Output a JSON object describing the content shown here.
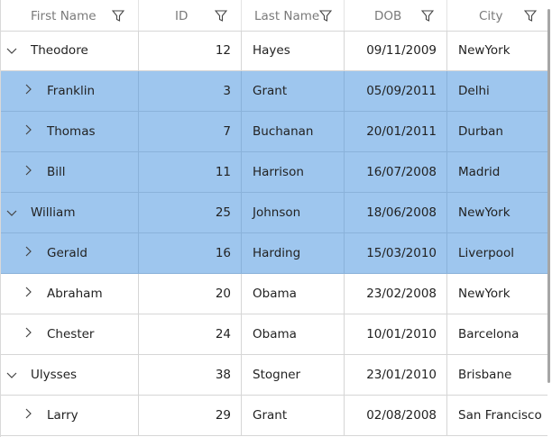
{
  "columns": [
    {
      "label": "First Name",
      "filter_icon": "filter-icon"
    },
    {
      "label": "ID",
      "filter_icon": "filter-icon"
    },
    {
      "label": "Last Name",
      "filter_icon": "filter-icon"
    },
    {
      "label": "DOB",
      "filter_icon": "filter-icon"
    },
    {
      "label": "City",
      "filter_icon": "filter-icon"
    }
  ],
  "rows": [
    {
      "level": 0,
      "expanded": true,
      "selected": false,
      "first_name": "Theodore",
      "id": "12",
      "last_name": "Hayes",
      "dob": "09/11/2009",
      "city": "NewYork"
    },
    {
      "level": 1,
      "expanded": false,
      "selected": true,
      "first_name": "Franklin",
      "id": "3",
      "last_name": "Grant",
      "dob": "05/09/2011",
      "city": "Delhi"
    },
    {
      "level": 1,
      "expanded": false,
      "selected": true,
      "first_name": "Thomas",
      "id": "7",
      "last_name": "Buchanan",
      "dob": "20/01/2011",
      "city": "Durban"
    },
    {
      "level": 1,
      "expanded": false,
      "selected": true,
      "first_name": "Bill",
      "id": "11",
      "last_name": "Harrison",
      "dob": "16/07/2008",
      "city": "Madrid"
    },
    {
      "level": 0,
      "expanded": true,
      "selected": true,
      "first_name": "William",
      "id": "25",
      "last_name": "Johnson",
      "dob": "18/06/2008",
      "city": "NewYork"
    },
    {
      "level": 1,
      "expanded": false,
      "selected": true,
      "first_name": "Gerald",
      "id": "16",
      "last_name": "Harding",
      "dob": "15/03/2010",
      "city": "Liverpool"
    },
    {
      "level": 1,
      "expanded": false,
      "selected": false,
      "first_name": "Abraham",
      "id": "20",
      "last_name": "Obama",
      "dob": "23/02/2008",
      "city": "NewYork"
    },
    {
      "level": 1,
      "expanded": false,
      "selected": false,
      "first_name": "Chester",
      "id": "24",
      "last_name": "Obama",
      "dob": "10/01/2010",
      "city": "Barcelona"
    },
    {
      "level": 0,
      "expanded": true,
      "selected": false,
      "first_name": "Ulysses",
      "id": "38",
      "last_name": "Stogner",
      "dob": "23/01/2010",
      "city": "Brisbane"
    },
    {
      "level": 1,
      "expanded": false,
      "selected": false,
      "first_name": "Larry",
      "id": "29",
      "last_name": "Grant",
      "dob": "02/08/2008",
      "city": "San Francisco"
    }
  ],
  "colors": {
    "selection": "#9ec6ee",
    "grid_line": "#d6d6d6",
    "header_text": "#7a7a7a"
  }
}
